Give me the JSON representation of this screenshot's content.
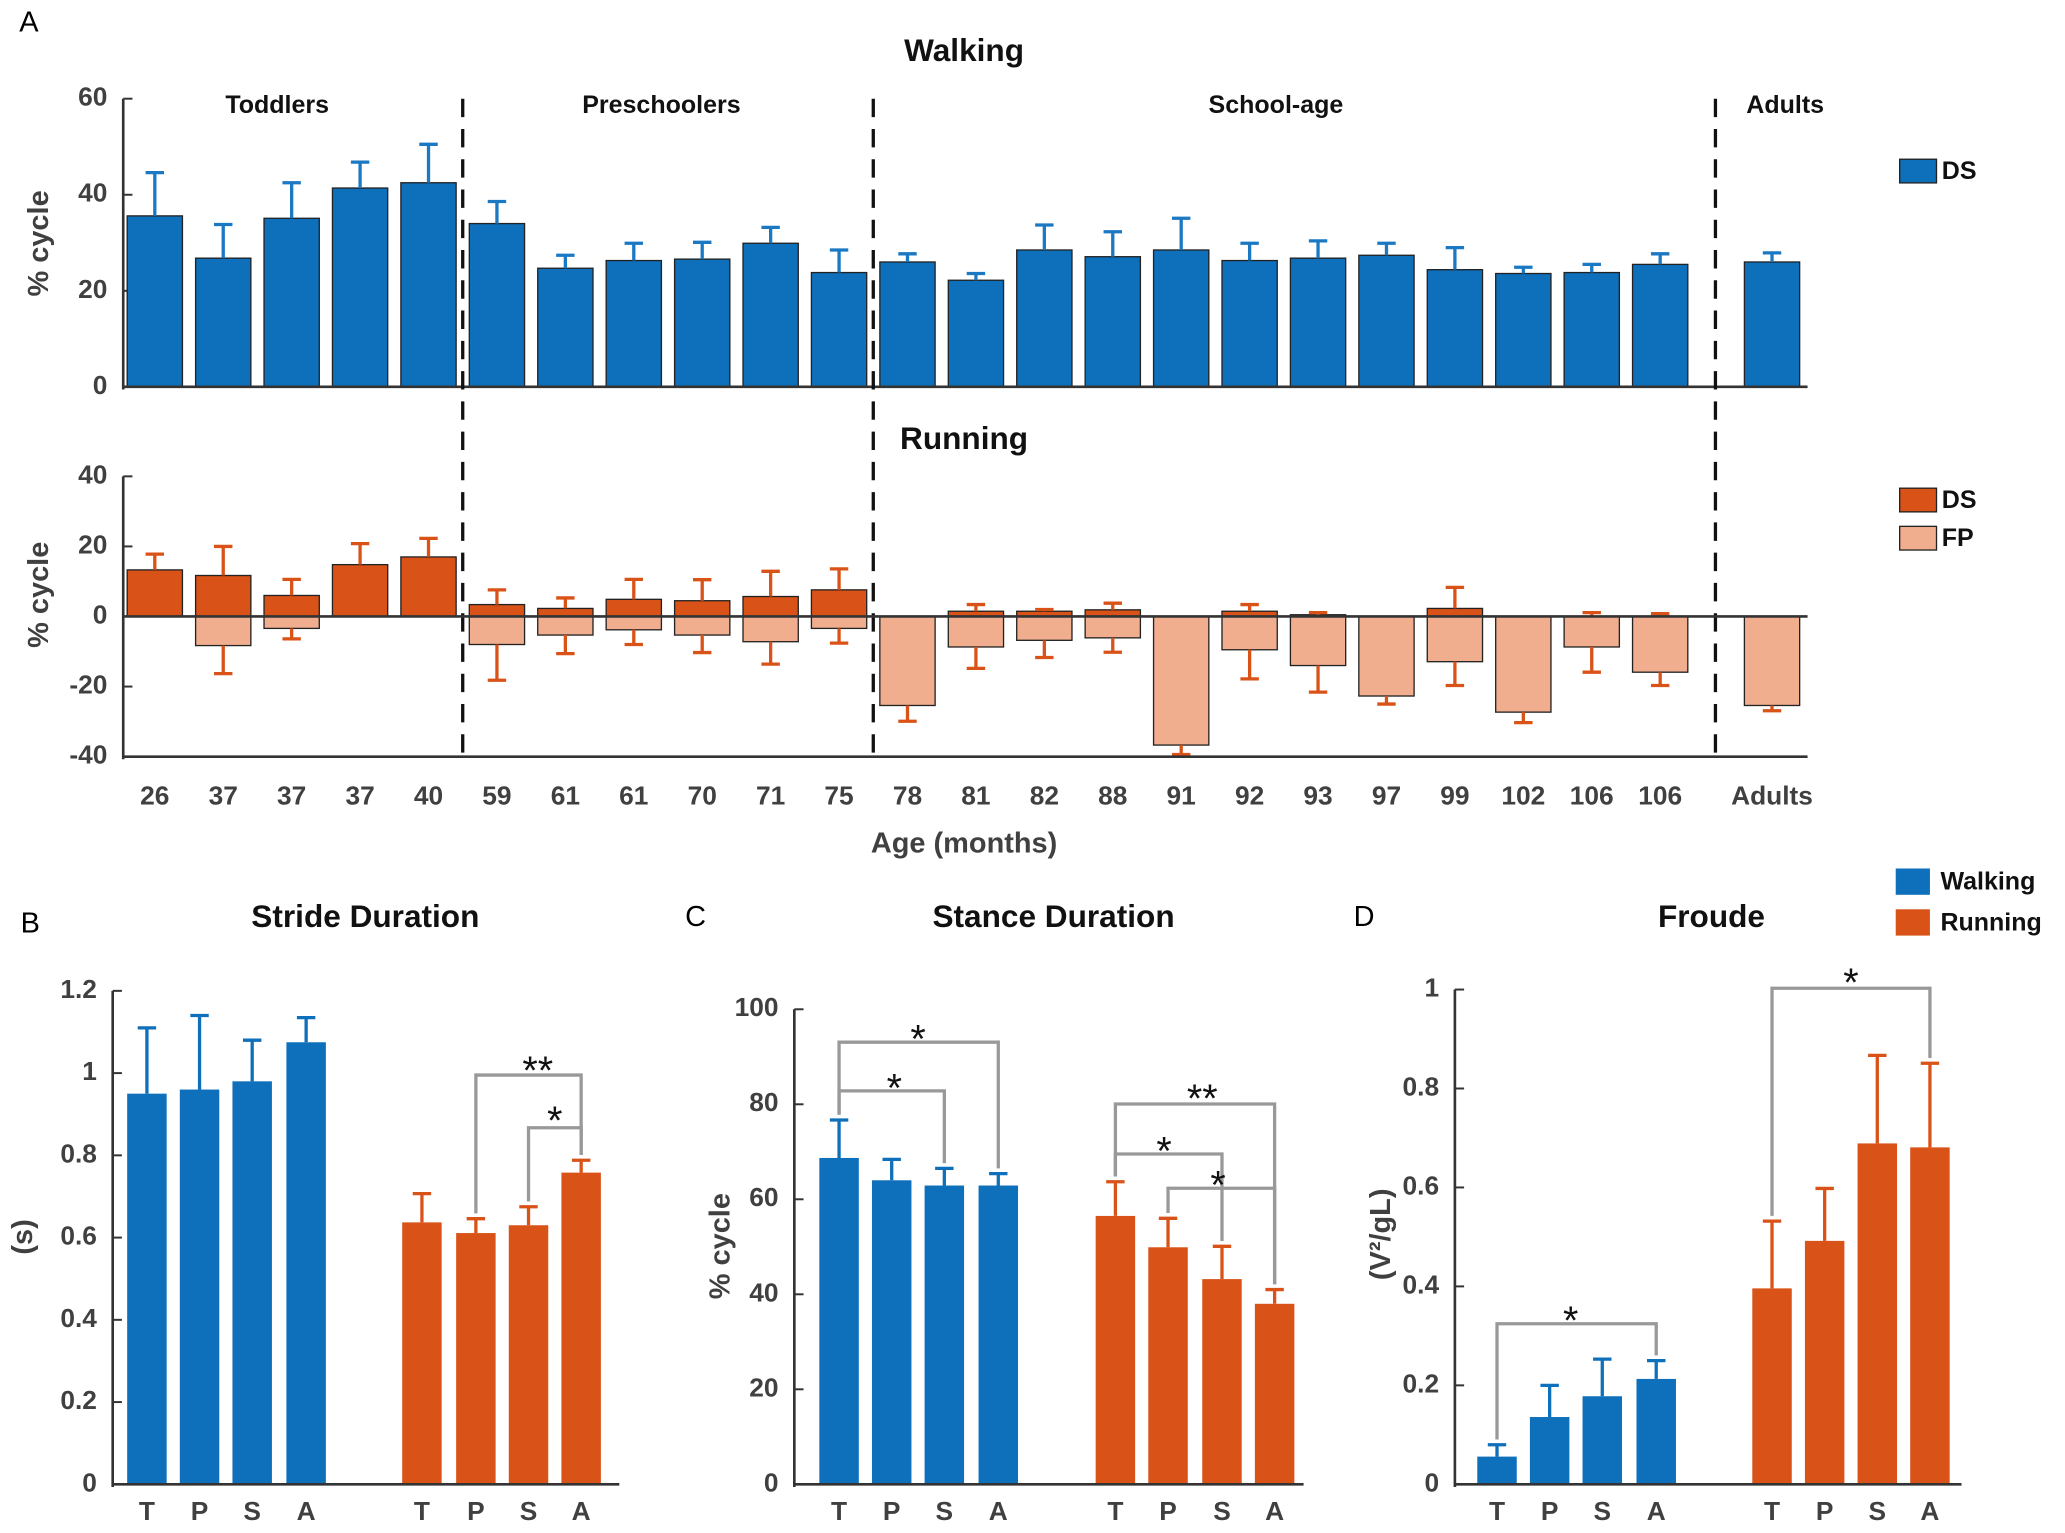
{
  "chart_data": [
    {
      "panel": "A",
      "type": "bar",
      "title": "Walking",
      "ylabel": "% cycle",
      "ylim": [
        0,
        60
      ],
      "yticks": [
        0,
        20,
        40,
        60
      ],
      "groups": [
        "Toddlers",
        "Preschoolers",
        "School-age",
        "Adults"
      ],
      "series": [
        {
          "name": "DS",
          "color": "#0e6fbb",
          "errcolor": "#1b78c2",
          "values": [
            35.6,
            26.8,
            35.1,
            41.4,
            42.5,
            34,
            24.7,
            26.3,
            26.6,
            29.9,
            23.8,
            26,
            22.2,
            28.5,
            27.1,
            28.5,
            26.3,
            26.8,
            27.4,
            24.4,
            23.6,
            23.8,
            25.5,
            26
          ],
          "errors": [
            9,
            7,
            7.4,
            5.4,
            8,
            4.6,
            2.7,
            3.6,
            3.5,
            3.3,
            4.7,
            1.7,
            1.4,
            5.2,
            5.2,
            6.6,
            3.6,
            3.6,
            2.5,
            4.6,
            1.3,
            1.7,
            2.2,
            1.9
          ]
        }
      ]
    },
    {
      "type": "bar",
      "title": "Running",
      "ylabel": "% cycle",
      "xlabel": "Age (months)",
      "categories": [
        "26",
        "37",
        "37",
        "37",
        "40",
        "59",
        "61",
        "61",
        "70",
        "71",
        "75",
        "78",
        "81",
        "82",
        "88",
        "91",
        "92",
        "93",
        "97",
        "99",
        "102",
        "106",
        "106",
        "Adults"
      ],
      "ylim": [
        -40,
        40
      ],
      "yticks": [
        -40,
        -20,
        0,
        20,
        40
      ],
      "series": [
        {
          "name": "DS",
          "color": "#d95319",
          "errcolor": "#d95319",
          "values": [
            13.3,
            11.7,
            6,
            14.8,
            17,
            3.4,
            2.3,
            4.9,
            4.5,
            5.7,
            7.6,
            0,
            1.5,
            1.5,
            1.9,
            0,
            1.5,
            0.5,
            0,
            2.3,
            0,
            0,
            0,
            0
          ],
          "errors": [
            4.5,
            8.3,
            4.6,
            6,
            5.3,
            4.2,
            3,
            5.7,
            6,
            7.2,
            6,
            0,
            1.9,
            0.5,
            1.9,
            0,
            1.9,
            0.6,
            0,
            6,
            0,
            1.1,
            0.8,
            0
          ]
        },
        {
          "name": "FP",
          "color": "#f0ae8e",
          "errcolor": "#d95319",
          "values": [
            0,
            -8.3,
            -3.4,
            0,
            0,
            -8,
            -5.3,
            -3.8,
            -5.3,
            -7.2,
            -3.4,
            -25.4,
            -8.7,
            -6.8,
            -6.1,
            -36.7,
            -9.5,
            -14,
            -22.7,
            -12.9,
            -27.3,
            -8.7,
            -15.9,
            -25.4
          ],
          "errors": [
            0,
            8,
            3,
            0,
            0,
            10.2,
            5.3,
            4.2,
            5,
            6.4,
            4.2,
            4.5,
            6.1,
            4.9,
            4.1,
            2.7,
            8.3,
            7.6,
            2.3,
            6.8,
            3,
            7.2,
            3.8,
            1.5
          ]
        }
      ]
    },
    {
      "panel": "B",
      "type": "bar",
      "title": "Stride Duration",
      "ylabel": "(s)",
      "ylim": [
        0,
        1.2
      ],
      "yticks": [
        0,
        0.2,
        0.4,
        0.6,
        0.8,
        1,
        1.2
      ],
      "annotations": [
        "**",
        "*"
      ],
      "series": [
        {
          "color": "#0e6fbb",
          "categories": [
            "T",
            "P",
            "S",
            "A"
          ],
          "values": [
            0.95,
            0.96,
            0.98,
            1.075
          ],
          "errors": [
            0.16,
            0.18,
            0.1,
            0.06
          ]
        },
        {
          "color": "#d95319",
          "categories": [
            "T",
            "P",
            "S",
            "A"
          ],
          "values": [
            0.637,
            0.611,
            0.63,
            0.758
          ],
          "errors": [
            0.07,
            0.035,
            0.045,
            0.03
          ]
        }
      ]
    },
    {
      "panel": "C",
      "type": "bar",
      "title": "Stance Duration",
      "ylabel": "% cycle",
      "ylim": [
        0,
        100
      ],
      "yticks": [
        0,
        20,
        40,
        60,
        80,
        100
      ],
      "annotations": [
        "*",
        "*",
        "**",
        "*",
        "*"
      ],
      "series": [
        {
          "color": "#0e6fbb",
          "categories": [
            "T",
            "P",
            "S",
            "A"
          ],
          "values": [
            68.7,
            64,
            62.9,
            62.9
          ],
          "errors": [
            8,
            4.4,
            3.6,
            2.5
          ]
        },
        {
          "color": "#d95319",
          "categories": [
            "T",
            "P",
            "S",
            "A"
          ],
          "values": [
            56.5,
            49.9,
            43.2,
            38
          ],
          "errors": [
            7.2,
            6.1,
            6.9,
            3
          ]
        }
      ]
    },
    {
      "panel": "D",
      "type": "bar",
      "title": "Froude",
      "ylabel": "(V²/gL)",
      "ylim": [
        0,
        1
      ],
      "yticks": [
        0,
        0.2,
        0.4,
        0.6,
        0.8,
        1
      ],
      "annotations": [
        "*",
        "*"
      ],
      "series": [
        {
          "name": "Walking",
          "color": "#0e6fbb",
          "categories": [
            "T",
            "P",
            "S",
            "A"
          ],
          "values": [
            0.056,
            0.136,
            0.178,
            0.213
          ],
          "errors": [
            0.024,
            0.064,
            0.075,
            0.037
          ]
        },
        {
          "name": "Running",
          "color": "#d95319",
          "categories": [
            "T",
            "P",
            "S",
            "A"
          ],
          "values": [
            0.396,
            0.492,
            0.689,
            0.681
          ],
          "errors": [
            0.136,
            0.106,
            0.178,
            0.17
          ]
        }
      ]
    }
  ]
}
